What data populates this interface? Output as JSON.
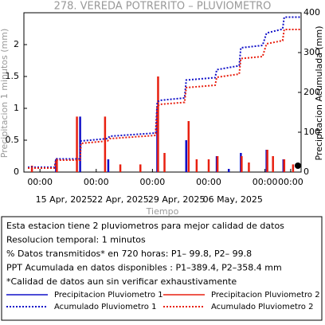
{
  "chart_data": {
    "type": "line",
    "title": "278. VEREDA POTRERITO – PLUVIOMETRO",
    "y_label": "Precipitacion 1 minutos (mm)",
    "y2_label": "Precipitacion Acumulada (mm)",
    "x_label": "Tiempo",
    "xlim": [
      10,
      44.5
    ],
    "ylim": [
      0,
      2.5
    ],
    "y2lim": [
      0,
      400
    ],
    "yticks": [
      0,
      0.5,
      1,
      1.5,
      2
    ],
    "y2ticks": [
      0,
      100,
      200,
      300,
      400
    ],
    "xticks": [
      {
        "value": 12,
        "label": "00:00"
      },
      {
        "value": 19,
        "label": "00:00"
      },
      {
        "value": 26,
        "label": "00:00"
      },
      {
        "value": 33,
        "label": "00:00"
      },
      {
        "value": 40,
        "label": "00:00"
      },
      {
        "value": 43.2,
        "label": "00:00"
      }
    ],
    "date_labels": [
      {
        "value": 15,
        "label": "15 Apr, 2025"
      },
      {
        "value": 22,
        "label": "22 Apr, 2025"
      },
      {
        "value": 29,
        "label": "29 Apr, 2025"
      },
      {
        "value": 36,
        "label": "06 May, 2025"
      }
    ],
    "series": [
      {
        "name": "Precipitacion Pluviometro 1",
        "color": "#1010c8",
        "style": "bar",
        "x": [
          14.0,
          17.0,
          20.5,
          26.6,
          30.2,
          34.0,
          35.5,
          37.0,
          40.2,
          42.3
        ],
        "values": [
          0.2,
          0.87,
          0.2,
          1.0,
          0.5,
          0.25,
          0.05,
          0.3,
          0.35,
          0.2
        ]
      },
      {
        "name": "Precipitacion Pluviometro 2",
        "color": "#e82010",
        "style": "bar",
        "x": [
          11.0,
          14.1,
          16.6,
          20.1,
          22.0,
          24.5,
          26.7,
          27.5,
          30.5,
          31.5,
          33.0,
          34.1,
          37.1,
          38.0,
          40.3,
          41.0,
          42.4,
          43.5
        ],
        "values": [
          0.1,
          0.22,
          0.87,
          0.87,
          0.12,
          0.12,
          1.5,
          0.3,
          0.8,
          0.2,
          0.2,
          0.25,
          0.25,
          0.15,
          0.35,
          0.25,
          0.2,
          0.12
        ]
      },
      {
        "name": "Acumulado Pluviometro 1",
        "color": "#1010c8",
        "style": "dotted",
        "axis": "y2",
        "x": [
          10.5,
          13.8,
          14.0,
          17.0,
          17.1,
          20.4,
          20.7,
          26.4,
          26.6,
          26.9,
          30.0,
          30.2,
          33.8,
          34.0,
          36.8,
          37.0,
          39.7,
          40.2,
          42.2,
          42.4,
          44.5
        ],
        "values": [
          12,
          12,
          33,
          33,
          78,
          84,
          90,
          98,
          176,
          180,
          186,
          231,
          237,
          257,
          267,
          312,
          318,
          349,
          359,
          389,
          389
        ]
      },
      {
        "name": "Acumulado Pluviometro 2",
        "color": "#e82010",
        "style": "dotted",
        "axis": "y2",
        "x": [
          10.5,
          13.8,
          14.0,
          17.0,
          17.1,
          20.4,
          20.7,
          26.4,
          26.6,
          26.9,
          30.0,
          30.2,
          33.8,
          34.0,
          36.8,
          37.0,
          39.7,
          40.2,
          42.2,
          42.4,
          44.5
        ],
        "values": [
          10,
          10,
          30,
          30,
          72,
          78,
          84,
          92,
          165,
          170,
          175,
          212,
          218,
          238,
          246,
          285,
          290,
          322,
          330,
          358,
          358
        ]
      }
    ],
    "notes": [
      "Esta estacion tiene 2 pluviometros para mejor calidad de datos",
      "Resolucion temporal: 1 minutos",
      "% Datos transmitidos* en 720 horas: P1– 99.8, P2– 99.8",
      "PPT Acumulada en datos disponibles : P1–389.4, P2–358.4 mm",
      "*Calidad de datos aun sin verificar exhaustivamente"
    ]
  }
}
